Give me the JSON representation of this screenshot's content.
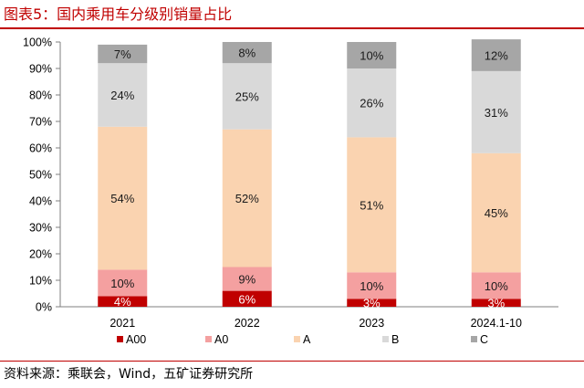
{
  "title": "图表5：国内乘用车分级别销量占比",
  "source": "资料来源：乘联会，Wind，五矿证券研究所",
  "colors": {
    "title": "#c00000",
    "A00": "#c00000",
    "A0": "#f4a0a0",
    "A": "#fad3b0",
    "B": "#d9d9d9",
    "C": "#a6a6a6"
  },
  "chart_data": {
    "type": "bar",
    "stacked": true,
    "categories": [
      "2021",
      "2022",
      "2023",
      "2024.1-10"
    ],
    "ylim": [
      0,
      100
    ],
    "yticks": [
      "0%",
      "10%",
      "20%",
      "30%",
      "40%",
      "50%",
      "60%",
      "70%",
      "80%",
      "90%",
      "100%"
    ],
    "legend_position": "bottom",
    "series": [
      {
        "name": "A00",
        "values": [
          4,
          6,
          3,
          3
        ],
        "labels": [
          "4%",
          "6%",
          "3%",
          "3%"
        ]
      },
      {
        "name": "A0",
        "values": [
          10,
          9,
          10,
          10
        ],
        "labels": [
          "10%",
          "9%",
          "10%",
          "10%"
        ]
      },
      {
        "name": "A",
        "values": [
          54,
          52,
          51,
          45
        ],
        "labels": [
          "54%",
          "52%",
          "51%",
          "45%"
        ]
      },
      {
        "name": "B",
        "values": [
          24,
          25,
          26,
          31
        ],
        "labels": [
          "24%",
          "25%",
          "26%",
          "31%"
        ]
      },
      {
        "name": "C",
        "values": [
          7,
          8,
          10,
          12
        ],
        "labels": [
          "7%",
          "8%",
          "10%",
          "12%"
        ]
      }
    ]
  }
}
